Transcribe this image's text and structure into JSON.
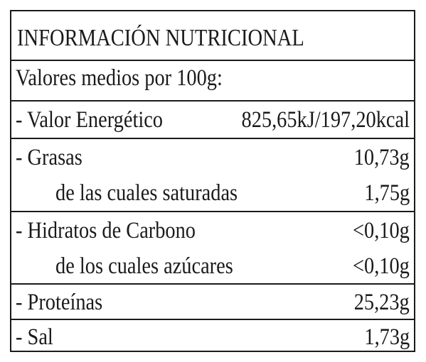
{
  "title": "INFORMACIÓN NUTRICIONAL",
  "subtitle": "Valores medios por 100g:",
  "energy": {
    "label": "- Valor Energético",
    "value": "825,65kJ/197,20kcal"
  },
  "fat": {
    "label": "- Grasas",
    "value": "10,73g",
    "sub_label": "de las cuales saturadas",
    "sub_value": "1,75g"
  },
  "carbs": {
    "label": "- Hidratos de Carbono",
    "value": "<0,10g",
    "sub_label": "de los cuales azúcares",
    "sub_value": "<0,10g"
  },
  "protein": {
    "label": "- Proteínas",
    "value": "25,23g"
  },
  "salt": {
    "label": "- Sal",
    "value": "1,73g"
  }
}
